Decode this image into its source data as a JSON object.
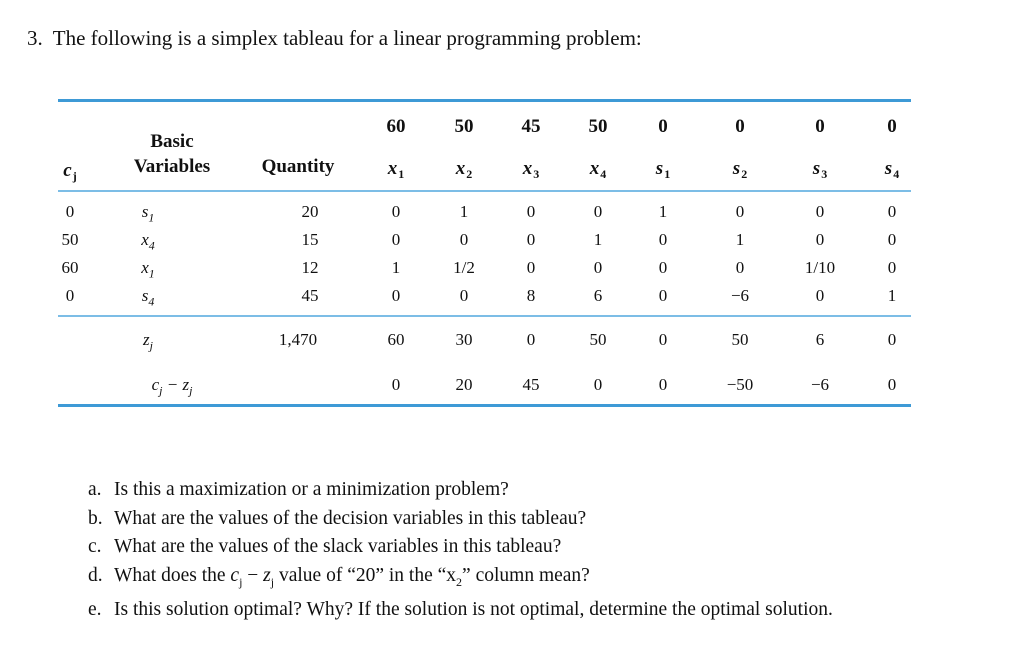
{
  "problem": {
    "number": "3.",
    "statement": "The following is a simplex tableau for a linear programming problem:"
  },
  "tableau": {
    "header": {
      "cj": "c",
      "cj_sub": "j",
      "basic_variables_line1": "Basic",
      "basic_variables_line2": "Variables",
      "quantity": "Quantity"
    },
    "columns": [
      {
        "cost": "60",
        "name": "x",
        "sub": "1"
      },
      {
        "cost": "50",
        "name": "x",
        "sub": "2"
      },
      {
        "cost": "45",
        "name": "x",
        "sub": "3"
      },
      {
        "cost": "50",
        "name": "x",
        "sub": "4"
      },
      {
        "cost": "0",
        "name": "s",
        "sub": "1"
      },
      {
        "cost": "0",
        "name": "s",
        "sub": "2"
      },
      {
        "cost": "0",
        "name": "s",
        "sub": "3"
      },
      {
        "cost": "0",
        "name": "s",
        "sub": "4"
      }
    ],
    "rows": [
      {
        "cj": "0",
        "basic": "s",
        "basic_sub": "1",
        "quantity": "20",
        "values": [
          "0",
          "1",
          "0",
          "0",
          "1",
          "0",
          "0",
          "0"
        ]
      },
      {
        "cj": "50",
        "basic": "x",
        "basic_sub": "4",
        "quantity": "15",
        "values": [
          "0",
          "0",
          "0",
          "1",
          "0",
          "1",
          "0",
          "0"
        ]
      },
      {
        "cj": "60",
        "basic": "x",
        "basic_sub": "1",
        "quantity": "12",
        "values": [
          "1",
          "1/2",
          "0",
          "0",
          "0",
          "0",
          "1/10",
          "0"
        ]
      },
      {
        "cj": "0",
        "basic": "s",
        "basic_sub": "4",
        "quantity": "45",
        "values": [
          "0",
          "0",
          "8",
          "6",
          "0",
          "−6",
          "0",
          "1"
        ]
      }
    ],
    "zj_row": {
      "label": "z",
      "label_sub": "j",
      "quantity": "1,470",
      "values": [
        "60",
        "30",
        "0",
        "50",
        "0",
        "50",
        "6",
        "0"
      ]
    },
    "cj_zj_row": {
      "label_c": "c",
      "label_c_sub": "j",
      "label_minus": " − ",
      "label_z": "z",
      "label_z_sub": "j",
      "values": [
        "0",
        "20",
        "45",
        "0",
        "0",
        "−50",
        "−6",
        "0"
      ]
    }
  },
  "questions": [
    {
      "letter": "a.",
      "text": "Is this a maximization or a minimization problem?"
    },
    {
      "letter": "b.",
      "text": "What are the values of the decision variables in this tableau?"
    },
    {
      "letter": "c.",
      "text": "What are the values of the slack variables in this tableau?"
    },
    {
      "letter": "d.",
      "text_before": "What does the ",
      "cj": "c",
      "cj_sub": "j",
      "minus": " − ",
      "zj": "z",
      "zj_sub": "j",
      "text_after": " value of “20” in the “x",
      "x_sub": "2",
      "text_end": "” column mean?"
    },
    {
      "letter": "e.",
      "text": "Is this solution optimal? Why? If the solution is not optimal, determine the optimal solution."
    }
  ]
}
